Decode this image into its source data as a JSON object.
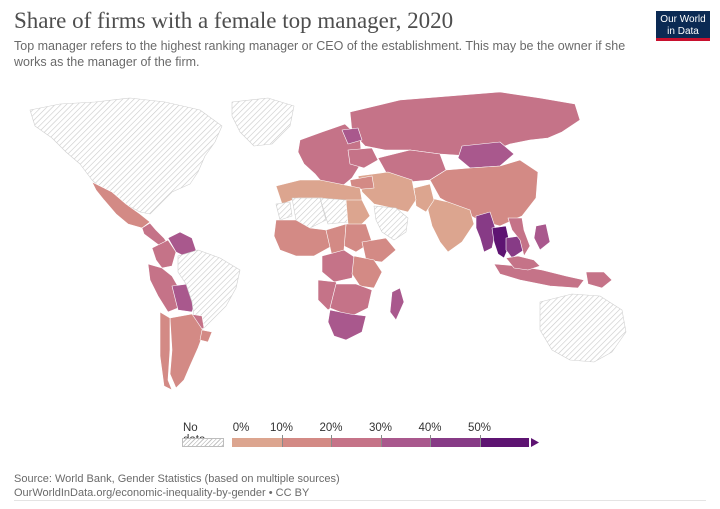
{
  "header": {
    "title": "Share of firms with a female top manager, 2020",
    "subtitle": "Top manager refers to the highest ranking manager or CEO of the establishment. This may be the owner if she works as the manager of the firm.",
    "logo_line1": "Our World",
    "logo_line2": "in Data"
  },
  "legend": {
    "no_data_label": "No data",
    "ticks": [
      "0%",
      "10%",
      "20%",
      "30%",
      "40%",
      "50%"
    ],
    "bins": [
      {
        "min": 0,
        "max": 10,
        "color": "#dca58f"
      },
      {
        "min": 10,
        "max": 20,
        "color": "#d38a85"
      },
      {
        "min": 20,
        "max": 30,
        "color": "#c57388"
      },
      {
        "min": 30,
        "max": 40,
        "color": "#a9588d"
      },
      {
        "min": 40,
        "max": 50,
        "color": "#873b86"
      },
      {
        "min": 50,
        "max": 60,
        "color": "#5e1472"
      }
    ],
    "no_data_color": "#e0e0e0"
  },
  "map_regions": [
    {
      "name": "North America",
      "value": null
    },
    {
      "name": "Greenland",
      "value": null
    },
    {
      "name": "Mexico",
      "value": 15
    },
    {
      "name": "Central America",
      "value": 20
    },
    {
      "name": "Venezuela",
      "value": 38
    },
    {
      "name": "Colombia",
      "value": 25
    },
    {
      "name": "Peru",
      "value": 22
    },
    {
      "name": "Bolivia",
      "value": 32
    },
    {
      "name": "Brazil",
      "value": null
    },
    {
      "name": "Paraguay",
      "value": 22
    },
    {
      "name": "Argentina",
      "value": 12
    },
    {
      "name": "Chile",
      "value": 10
    },
    {
      "name": "Uruguay",
      "value": 16
    },
    {
      "name": "Russia",
      "value": 24
    },
    {
      "name": "Europe",
      "value": 22
    },
    {
      "name": "Belarus",
      "value": 36
    },
    {
      "name": "Ukraine",
      "value": 22
    },
    {
      "name": "Kazakhstan",
      "value": 28
    },
    {
      "name": "Mongolia",
      "value": 38
    },
    {
      "name": "China",
      "value": 15
    },
    {
      "name": "India",
      "value": 8
    },
    {
      "name": "Pakistan",
      "value": 7
    },
    {
      "name": "Middle East",
      "value": 8
    },
    {
      "name": "Saudi Arabia",
      "value": null
    },
    {
      "name": "Turkey",
      "value": 12
    },
    {
      "name": "Myanmar",
      "value": 45
    },
    {
      "name": "Thailand",
      "value": 58
    },
    {
      "name": "Cambodia",
      "value": 48
    },
    {
      "name": "Vietnam",
      "value": 25
    },
    {
      "name": "Philippines",
      "value": 30
    },
    {
      "name": "Indonesia",
      "value": 20
    },
    {
      "name": "Malaysia",
      "value": 28
    },
    {
      "name": "Papua New Guinea",
      "value": 22
    },
    {
      "name": "Australia",
      "value": null
    },
    {
      "name": "North Africa",
      "value": 8
    },
    {
      "name": "Western Sahara",
      "value": null
    },
    {
      "name": "Algeria",
      "value": null
    },
    {
      "name": "Libya",
      "value": null
    },
    {
      "name": "Egypt",
      "value": 8
    },
    {
      "name": "West Africa",
      "value": 15
    },
    {
      "name": "Sudan",
      "value": 10
    },
    {
      "name": "Ethiopia",
      "value": 16
    },
    {
      "name": "Central Africa",
      "value": 18
    },
    {
      "name": "DR Congo",
      "value": 20
    },
    {
      "name": "East Africa",
      "value": 18
    },
    {
      "name": "Angola",
      "value": 22
    },
    {
      "name": "Southern Africa",
      "value": 28
    },
    {
      "name": "South Africa",
      "value": 32
    },
    {
      "name": "Madagascar",
      "value": 34
    }
  ],
  "footer": {
    "source": "Source: World Bank, Gender Statistics (based on multiple sources)",
    "url": "OurWorldInData.org/economic-inequality-by-gender • CC BY"
  }
}
